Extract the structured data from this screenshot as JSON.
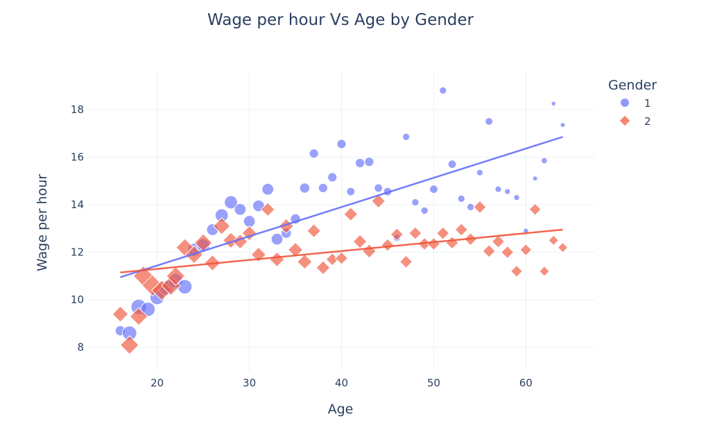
{
  "chart_data": {
    "type": "scatter",
    "title": "Wage per hour Vs Age by Gender",
    "xlabel": "Age",
    "ylabel": "Wage per hour",
    "xlim": [
      12.5,
      67.5
    ],
    "ylim": [
      7.0,
      19.6
    ],
    "xticks": [
      20,
      30,
      40,
      50,
      60
    ],
    "yticks": [
      8,
      10,
      12,
      14,
      16,
      18
    ],
    "grid": true,
    "legend": {
      "title": "Gender",
      "placement": "top-right"
    },
    "marker_size": "scaled by count of observations",
    "series": [
      {
        "name": "1",
        "color": "#636efa",
        "marker": "circle",
        "points": [
          {
            "x": 16,
            "y": 8.7,
            "n": 3
          },
          {
            "x": 17,
            "y": 8.6,
            "n": 6
          },
          {
            "x": 18,
            "y": 9.7,
            "n": 7
          },
          {
            "x": 19,
            "y": 9.6,
            "n": 6
          },
          {
            "x": 20,
            "y": 10.1,
            "n": 6
          },
          {
            "x": 21,
            "y": 10.5,
            "n": 6
          },
          {
            "x": 22,
            "y": 10.8,
            "n": 6
          },
          {
            "x": 23,
            "y": 10.55,
            "n": 6
          },
          {
            "x": 24,
            "y": 12.1,
            "n": 5
          },
          {
            "x": 25,
            "y": 12.3,
            "n": 5
          },
          {
            "x": 26,
            "y": 12.95,
            "n": 4
          },
          {
            "x": 27,
            "y": 13.55,
            "n": 5
          },
          {
            "x": 28,
            "y": 14.1,
            "n": 5
          },
          {
            "x": 29,
            "y": 13.8,
            "n": 4
          },
          {
            "x": 30,
            "y": 13.3,
            "n": 4
          },
          {
            "x": 31,
            "y": 13.95,
            "n": 4
          },
          {
            "x": 32,
            "y": 14.65,
            "n": 4
          },
          {
            "x": 33,
            "y": 12.55,
            "n": 4
          },
          {
            "x": 34,
            "y": 12.8,
            "n": 3
          },
          {
            "x": 35,
            "y": 13.4,
            "n": 3
          },
          {
            "x": 36,
            "y": 14.7,
            "n": 3
          },
          {
            "x": 37,
            "y": 16.15,
            "n": 2.5
          },
          {
            "x": 38,
            "y": 14.7,
            "n": 2.5
          },
          {
            "x": 39,
            "y": 15.15,
            "n": 2.5
          },
          {
            "x": 40,
            "y": 16.55,
            "n": 2.5
          },
          {
            "x": 41,
            "y": 14.55,
            "n": 2
          },
          {
            "x": 42,
            "y": 15.75,
            "n": 2.5
          },
          {
            "x": 43,
            "y": 15.8,
            "n": 2.5
          },
          {
            "x": 44,
            "y": 14.7,
            "n": 2
          },
          {
            "x": 45,
            "y": 14.55,
            "n": 2
          },
          {
            "x": 46,
            "y": 12.6,
            "n": 1.5
          },
          {
            "x": 47,
            "y": 16.85,
            "n": 1.5
          },
          {
            "x": 48,
            "y": 14.1,
            "n": 1.5
          },
          {
            "x": 49,
            "y": 13.75,
            "n": 1.5
          },
          {
            "x": 50,
            "y": 14.65,
            "n": 2
          },
          {
            "x": 51,
            "y": 18.8,
            "n": 1.5
          },
          {
            "x": 52,
            "y": 15.7,
            "n": 2
          },
          {
            "x": 53,
            "y": 14.25,
            "n": 1.5
          },
          {
            "x": 54,
            "y": 13.9,
            "n": 1.5
          },
          {
            "x": 55,
            "y": 15.35,
            "n": 1.2
          },
          {
            "x": 56,
            "y": 17.5,
            "n": 1.7
          },
          {
            "x": 57,
            "y": 14.65,
            "n": 1.2
          },
          {
            "x": 58,
            "y": 14.55,
            "n": 1
          },
          {
            "x": 59,
            "y": 14.3,
            "n": 1
          },
          {
            "x": 60,
            "y": 12.9,
            "n": 0.8
          },
          {
            "x": 61,
            "y": 15.1,
            "n": 0.7
          },
          {
            "x": 62,
            "y": 15.85,
            "n": 1.1
          },
          {
            "x": 63,
            "y": 18.25,
            "n": 0.6
          },
          {
            "x": 64,
            "y": 17.35,
            "n": 0.7
          }
        ],
        "trendline": {
          "x": [
            16,
            64
          ],
          "y": [
            10.95,
            16.85
          ]
        }
      },
      {
        "name": "2",
        "color": "#ef553b",
        "marker": "diamond",
        "points": [
          {
            "x": 16,
            "y": 9.4,
            "n": 4
          },
          {
            "x": 17,
            "y": 8.1,
            "n": 5.5
          },
          {
            "x": 18,
            "y": 9.3,
            "n": 5
          },
          {
            "x": 18.5,
            "y": 11,
            "n": 6.5
          },
          {
            "x": 19.5,
            "y": 10.6,
            "n": 7
          },
          {
            "x": 20.5,
            "y": 10.4,
            "n": 6.5
          },
          {
            "x": 21.5,
            "y": 10.6,
            "n": 6
          },
          {
            "x": 22,
            "y": 11,
            "n": 5.5
          },
          {
            "x": 23,
            "y": 12.2,
            "n": 5
          },
          {
            "x": 24,
            "y": 11.9,
            "n": 5
          },
          {
            "x": 25,
            "y": 12.4,
            "n": 5
          },
          {
            "x": 26,
            "y": 11.55,
            "n": 4
          },
          {
            "x": 27,
            "y": 13.1,
            "n": 4.5
          },
          {
            "x": 28,
            "y": 12.5,
            "n": 4
          },
          {
            "x": 29,
            "y": 12.45,
            "n": 3.5
          },
          {
            "x": 30,
            "y": 12.8,
            "n": 3.5
          },
          {
            "x": 31,
            "y": 11.9,
            "n": 3.5
          },
          {
            "x": 32,
            "y": 13.8,
            "n": 3
          },
          {
            "x": 33,
            "y": 11.7,
            "n": 3.5
          },
          {
            "x": 34,
            "y": 13.1,
            "n": 3.5
          },
          {
            "x": 35,
            "y": 12.1,
            "n": 3.5
          },
          {
            "x": 36,
            "y": 11.6,
            "n": 3.5
          },
          {
            "x": 37,
            "y": 12.9,
            "n": 3
          },
          {
            "x": 38,
            "y": 11.35,
            "n": 3
          },
          {
            "x": 39,
            "y": 11.7,
            "n": 2.5
          },
          {
            "x": 40,
            "y": 11.75,
            "n": 2.5
          },
          {
            "x": 41,
            "y": 13.6,
            "n": 3
          },
          {
            "x": 42,
            "y": 12.45,
            "n": 3
          },
          {
            "x": 43,
            "y": 12.05,
            "n": 3
          },
          {
            "x": 44,
            "y": 14.15,
            "n": 3
          },
          {
            "x": 45,
            "y": 12.3,
            "n": 2.5
          },
          {
            "x": 46,
            "y": 12.75,
            "n": 2.5
          },
          {
            "x": 47,
            "y": 11.6,
            "n": 2.5
          },
          {
            "x": 48,
            "y": 12.8,
            "n": 2.5
          },
          {
            "x": 49,
            "y": 12.35,
            "n": 2.5
          },
          {
            "x": 50,
            "y": 12.35,
            "n": 2.5
          },
          {
            "x": 51,
            "y": 12.8,
            "n": 2.5
          },
          {
            "x": 52,
            "y": 12.4,
            "n": 2.5
          },
          {
            "x": 53,
            "y": 12.95,
            "n": 2.5
          },
          {
            "x": 54,
            "y": 12.55,
            "n": 2.5
          },
          {
            "x": 55,
            "y": 13.9,
            "n": 2.5
          },
          {
            "x": 56,
            "y": 12.05,
            "n": 2.5
          },
          {
            "x": 57,
            "y": 12.45,
            "n": 2.5
          },
          {
            "x": 58,
            "y": 12,
            "n": 2.5
          },
          {
            "x": 59,
            "y": 11.2,
            "n": 2.2
          },
          {
            "x": 60,
            "y": 12.1,
            "n": 2.2
          },
          {
            "x": 61,
            "y": 13.8,
            "n": 2.2
          },
          {
            "x": 62,
            "y": 11.2,
            "n": 1.6
          },
          {
            "x": 63,
            "y": 12.5,
            "n": 1.6
          },
          {
            "x": 64,
            "y": 12.2,
            "n": 1.6
          }
        ],
        "trendline": {
          "x": [
            16,
            64
          ],
          "y": [
            11.15,
            12.95
          ]
        }
      }
    ]
  }
}
